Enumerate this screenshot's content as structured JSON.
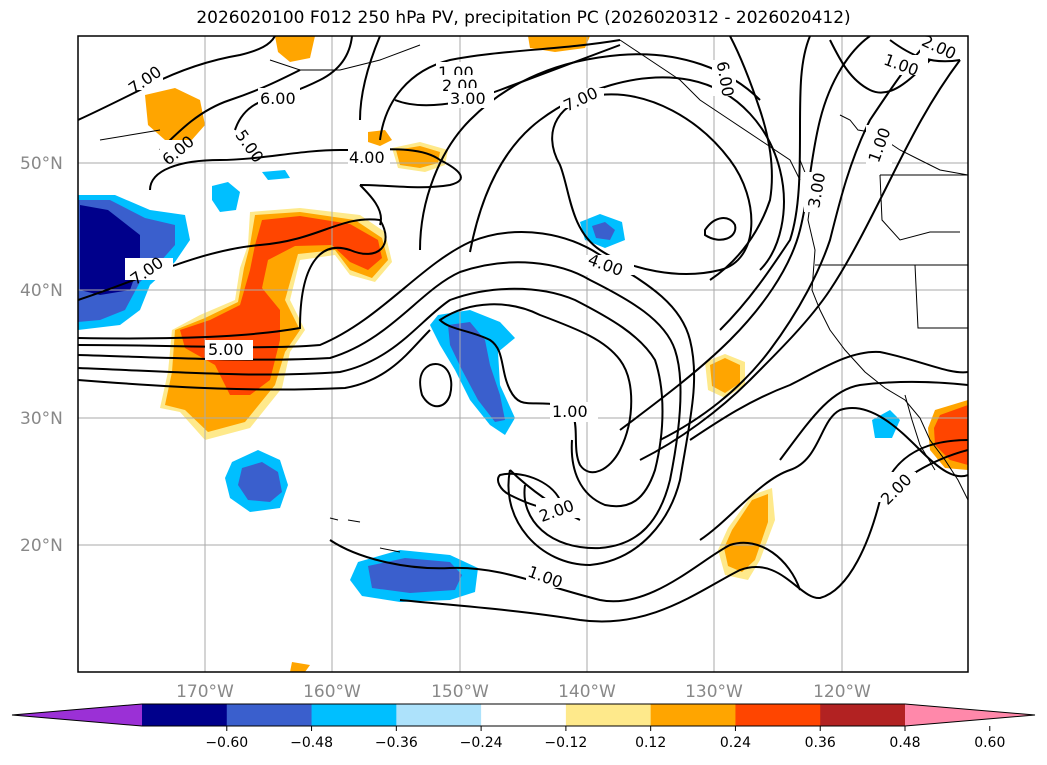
{
  "title": "2026020100 F012 250 hPa PV, precipitation PC (2026020312 - 2026020412)",
  "lat_labels": [
    "50°N",
    "40°N",
    "30°N",
    "20°N"
  ],
  "lon_labels": [
    "170°W",
    "160°W",
    "150°W",
    "140°W",
    "130°W",
    "120°W"
  ],
  "colorbar": {
    "colors": [
      "#9b30d6",
      "#00008b",
      "#3a5fcd",
      "#00bfff",
      "#ade2fb",
      "#ffffff",
      "#fee98b",
      "#ffa500",
      "#ff4500",
      "#b22222",
      "#ff88aa"
    ],
    "ticks": [
      "−0.60",
      "−0.48",
      "−0.36",
      "−0.24",
      "−0.12",
      "0.12",
      "0.24",
      "0.36",
      "0.48",
      "0.60"
    ]
  },
  "contour_labels": [
    "7.00",
    "6.00",
    "6.00",
    "5.00",
    "4.00",
    "1.00",
    "2.00",
    "3.00",
    "7.00",
    "6.00",
    "2.00",
    "1.00",
    "1.00",
    "3.00",
    "7.00",
    "5.00",
    "4.00",
    "1.00",
    "2.00",
    "1.00",
    "2.00"
  ]
}
